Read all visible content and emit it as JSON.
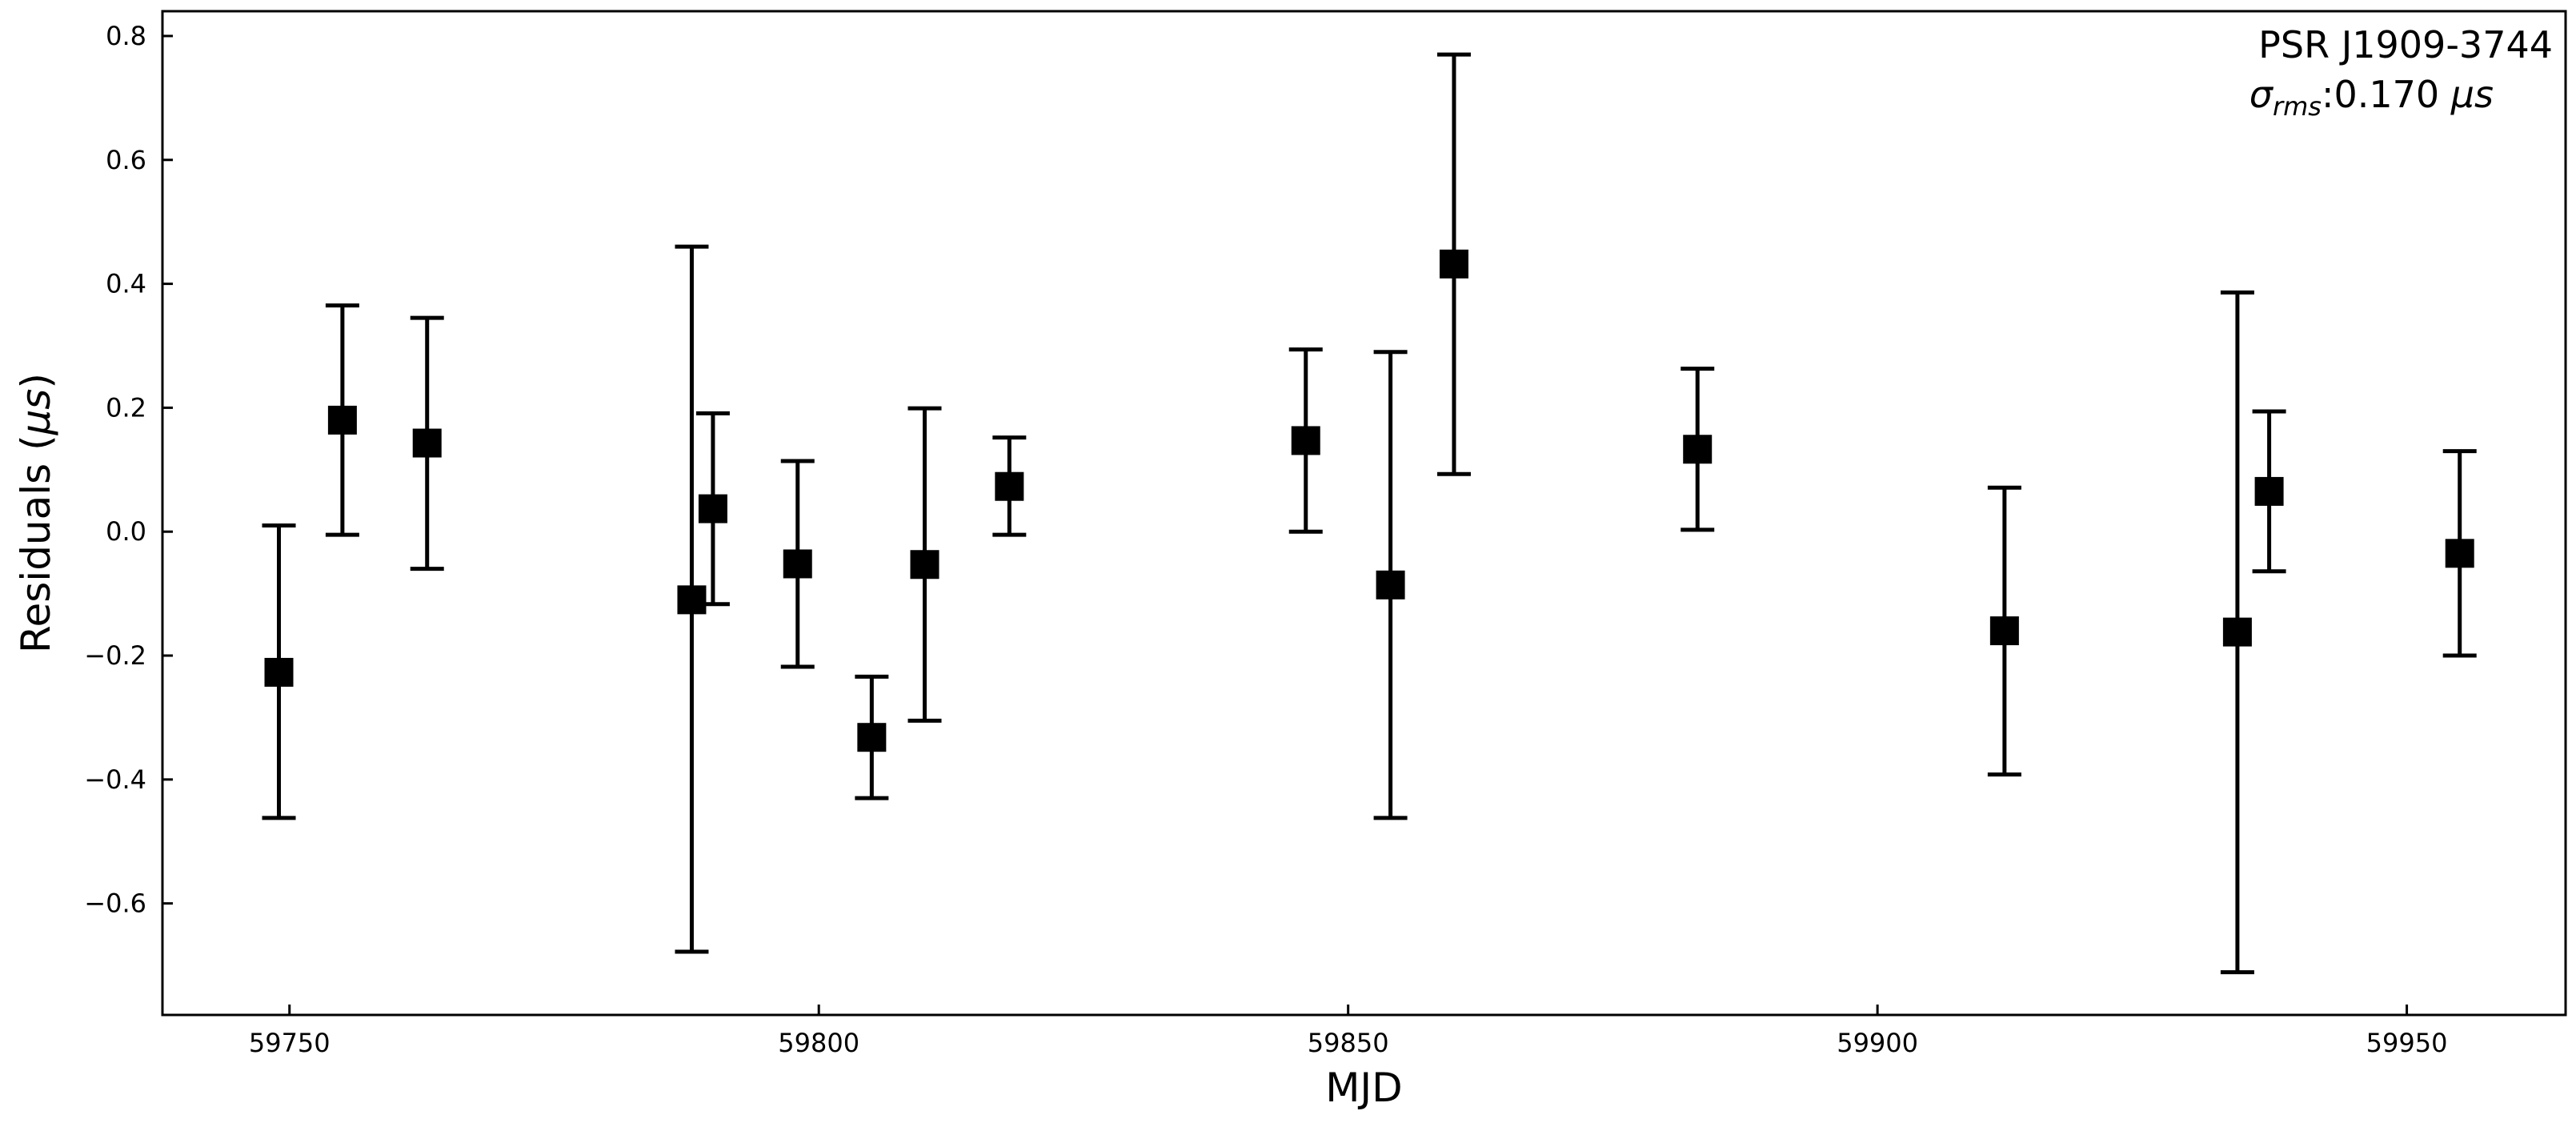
{
  "chart_data": {
    "type": "scatter",
    "xlabel": "MJD",
    "ylabel_prefix": "Residuals (",
    "ylabel_symbol": "μs",
    "ylabel_suffix": ")",
    "xlim": [
      59738,
      59965
    ],
    "ylim": [
      -0.78,
      0.84
    ],
    "x_ticks": [
      59750,
      59800,
      59850,
      59900,
      59950
    ],
    "x_tick_labels": [
      "59750",
      "59800",
      "59850",
      "59900",
      "59950"
    ],
    "y_ticks": [
      -0.6,
      -0.4,
      -0.2,
      0.0,
      0.2,
      0.4,
      0.6,
      0.8
    ],
    "y_tick_labels": [
      "−0.6",
      "−0.4",
      "−0.2",
      "0.0",
      "0.2",
      "0.4",
      "0.6",
      "0.8"
    ],
    "grid": false,
    "marker": "square",
    "marker_color": "#000000",
    "annotation": {
      "line1": "PSR J1909-3744",
      "sigma_symbol": "σ",
      "sigma_subscript": "rms",
      "sigma_value": ":0.170 ",
      "sigma_unit": "μs",
      "position": "top-right"
    },
    "points": [
      {
        "x": 59749,
        "y": -0.227,
        "err_low": -0.462,
        "err_high": 0.01
      },
      {
        "x": 59755,
        "y": 0.18,
        "err_low": -0.005,
        "err_high": 0.365
      },
      {
        "x": 59763,
        "y": 0.143,
        "err_low": -0.06,
        "err_high": 0.345
      },
      {
        "x": 59788,
        "y": -0.11,
        "err_low": -0.678,
        "err_high": 0.46
      },
      {
        "x": 59790,
        "y": 0.037,
        "err_low": -0.117,
        "err_high": 0.191
      },
      {
        "x": 59798,
        "y": -0.052,
        "err_low": -0.218,
        "err_high": 0.114
      },
      {
        "x": 59805,
        "y": -0.332,
        "err_low": -0.43,
        "err_high": -0.234
      },
      {
        "x": 59810,
        "y": -0.053,
        "err_low": -0.305,
        "err_high": 0.199
      },
      {
        "x": 59818,
        "y": 0.073,
        "err_low": -0.005,
        "err_high": 0.152
      },
      {
        "x": 59846,
        "y": 0.147,
        "err_low": 0.0,
        "err_high": 0.294
      },
      {
        "x": 59854,
        "y": -0.086,
        "err_low": -0.462,
        "err_high": 0.29
      },
      {
        "x": 59860,
        "y": 0.432,
        "err_low": 0.093,
        "err_high": 0.77
      },
      {
        "x": 59883,
        "y": 0.133,
        "err_low": 0.003,
        "err_high": 0.263
      },
      {
        "x": 59912,
        "y": -0.16,
        "err_low": -0.392,
        "err_high": 0.071
      },
      {
        "x": 59934,
        "y": -0.162,
        "err_low": -0.711,
        "err_high": 0.386
      },
      {
        "x": 59937,
        "y": 0.065,
        "err_low": -0.064,
        "err_high": 0.194
      },
      {
        "x": 59955,
        "y": -0.035,
        "err_low": -0.2,
        "err_high": 0.13
      }
    ]
  }
}
